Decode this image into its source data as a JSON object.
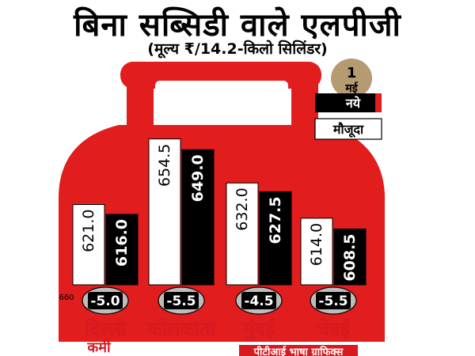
{
  "header": {
    "title": "बिना सब्सिडी वाले एलपीजी",
    "subtitle": "(मूल्य ₹/14.2-किलो सिलिंडर)"
  },
  "legend": {
    "date_number": "1",
    "date_month": "मई",
    "new_label": "नये",
    "current_label": "मौजूदा"
  },
  "footer": {
    "scale_note": "660",
    "reduction_label": "कमी",
    "source": "पीटीआई भाषा ग्राफिक्स"
  },
  "colors": {
    "cylinder": "#e11d1d",
    "badge": "#bdbdbd",
    "date_circle": "#b59a72",
    "city_text": "#d71920"
  },
  "chart_data": {
    "type": "bar",
    "title": "बिना सब्सिडी वाले एलपीजी",
    "subtitle": "(मूल्य ₹/14.2-किलो सिलिंडर)",
    "categories": [
      "दिल्ली",
      "कोलकाता",
      "मुंबई",
      "चेन्नई"
    ],
    "series": [
      {
        "name": "मौजूदा",
        "values": [
          621.0,
          654.5,
          632.0,
          614.0
        ],
        "color": "#ffffff",
        "label_color": "#000000"
      },
      {
        "name": "नये",
        "values": [
          616.0,
          649.0,
          627.5,
          608.5
        ],
        "color": "#000000",
        "label_color": "#ffffff"
      }
    ],
    "series_labels": [
      [
        "621.0",
        "654.5",
        "632.0",
        "614.0"
      ],
      [
        "616.0",
        "649.0",
        "627.5",
        "608.5"
      ]
    ],
    "changes": [
      "-5.0",
      "-5.5",
      "-4.5",
      "-5.5"
    ],
    "ylim": [
      580,
      660
    ],
    "grid": false,
    "legend_position": "right"
  }
}
